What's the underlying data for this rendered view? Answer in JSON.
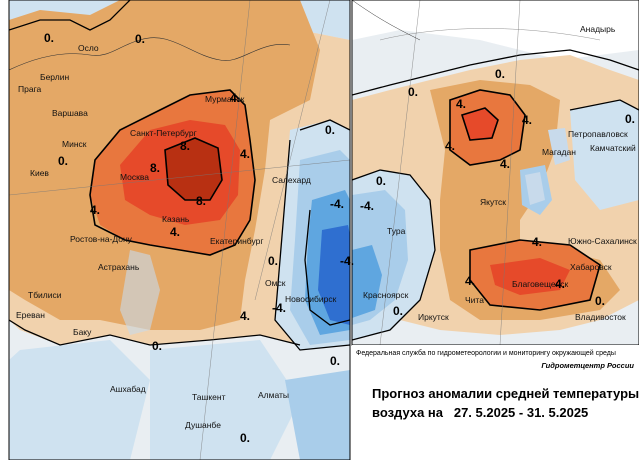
{
  "colors": {
    "cold_strong": "#2f6fd0",
    "cold_mid": "#5fa6e0",
    "cold_light": "#a9cdea",
    "cold_faint": "#cfe2f0",
    "neutral": "#e9eef2",
    "warm_faint": "#f1d2ad",
    "warm_light": "#e4a866",
    "warm_mid": "#e8773e",
    "warm_strong": "#e64a2a",
    "warm_max": "#b83012",
    "water": "#c8daeb",
    "frame": "#000000"
  },
  "left_map": {
    "cities": [
      "Осло",
      "Берлин",
      "Прага",
      "Варшава",
      "Минск",
      "Киев",
      "Санкт-Петербург",
      "Мурманск",
      "Москва",
      "Казань",
      "Ростов-на-Дону",
      "Астрахань",
      "Екатеринбург",
      "Салехард",
      "Омск",
      "Новосибирск",
      "Тбилиси",
      "Ереван",
      "Баку",
      "Ашхабад",
      "Ташкент",
      "Душанбе",
      "Алматы"
    ],
    "contour_labels": [
      "0.",
      "0.",
      "4.",
      "4.",
      "8.",
      "8.",
      "8.",
      "4.",
      "4.",
      "0.",
      "0.",
      "0.",
      "-4.",
      "-4.",
      "-4.",
      "0.",
      "0.",
      "4.",
      "0."
    ]
  },
  "right_map": {
    "cities": [
      "Анадырь",
      "Петропавловск",
      "Магадан",
      "Камчатский",
      "Якутск",
      "Тура",
      "Красноярск",
      "Иркутск",
      "Чита",
      "Благовещенск",
      "Хабаровск",
      "Южно-Сахалинск",
      "Владивосток"
    ],
    "contour_labels": [
      "0.",
      "0.",
      "4.",
      "4.",
      "4.",
      "4.",
      "0.",
      "0.",
      "-4.",
      "4.",
      "4.",
      "4.",
      "0.",
      "0."
    ]
  },
  "credit": {
    "agency": "Федеральная служба по гидрометеорологии и мониторингу окружающей среды",
    "center": "Гидрометцентр России"
  },
  "title": {
    "line1": "Прогноз аномалии средней температуры",
    "line2": "воздуха на   27. 5.2025 - 31. 5.2025"
  }
}
